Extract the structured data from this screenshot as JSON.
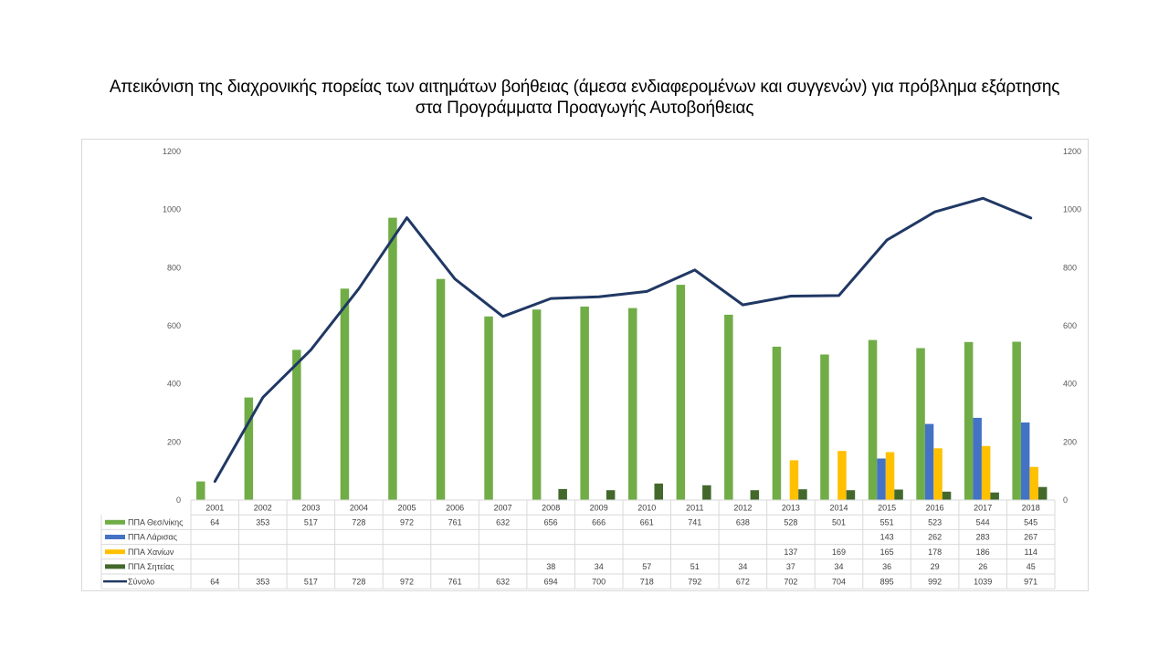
{
  "title_line1": "Απεικόνιση της διαχρονικής πορείας των αιτημάτων βοήθειας (άμεσα ενδιαφερομένων και συγγενών) για πρόβλημα εξάρτησης",
  "title_line2": "στα Προγράμματα Προαγωγής Αυτοβοήθειας",
  "chart_data": {
    "type": "bar",
    "title": "Απεικόνιση της διαχρονικής πορείας των αιτημάτων βοήθειας (άμεσα ενδιαφερομένων και συγγενών) για πρόβλημα εξάρτησης στα Προγράμματα Προαγωγής Αυτοβοήθειας",
    "xlabel": "",
    "ylabel": "",
    "categories": [
      "2001",
      "2002",
      "2003",
      "2004",
      "2005",
      "2006",
      "2007",
      "2008",
      "2009",
      "2010",
      "2011",
      "2012",
      "2013",
      "2014",
      "2015",
      "2016",
      "2017",
      "2018"
    ],
    "ylim": [
      0,
      1200
    ],
    "y_ticks": [
      0,
      200,
      400,
      600,
      800,
      1000,
      1200
    ],
    "secondary_ylim": [
      0,
      1200
    ],
    "secondary_y_ticks": [
      0,
      200,
      400,
      600,
      800,
      1000,
      1200
    ],
    "grid": false,
    "legend": "data-table",
    "series": [
      {
        "name": "ΠΠΑ Θεσ/νίκης",
        "type": "bar",
        "color": "#70ad47",
        "values": [
          64,
          353,
          517,
          728,
          972,
          761,
          632,
          656,
          666,
          661,
          741,
          638,
          528,
          501,
          551,
          523,
          544,
          545
        ]
      },
      {
        "name": "ΠΠΑ Λάρισας",
        "type": "bar",
        "color": "#4472c4",
        "values": [
          null,
          null,
          null,
          null,
          null,
          null,
          null,
          null,
          null,
          null,
          null,
          null,
          null,
          null,
          143,
          262,
          283,
          267
        ]
      },
      {
        "name": "ΠΠΑ Χανίων",
        "type": "bar",
        "color": "#ffc000",
        "values": [
          null,
          null,
          null,
          null,
          null,
          null,
          null,
          null,
          null,
          null,
          null,
          null,
          137,
          169,
          165,
          178,
          186,
          114
        ]
      },
      {
        "name": "ΠΠΑ Σητείας",
        "type": "bar",
        "color": "#43682b",
        "values": [
          null,
          null,
          null,
          null,
          null,
          null,
          null,
          38,
          34,
          57,
          51,
          34,
          37,
          34,
          36,
          29,
          26,
          45
        ]
      },
      {
        "name": "Σύνολο",
        "type": "line",
        "color": "#203864",
        "values": [
          64,
          353,
          517,
          728,
          972,
          761,
          632,
          694,
          700,
          718,
          792,
          672,
          702,
          704,
          895,
          992,
          1039,
          971
        ]
      }
    ]
  }
}
